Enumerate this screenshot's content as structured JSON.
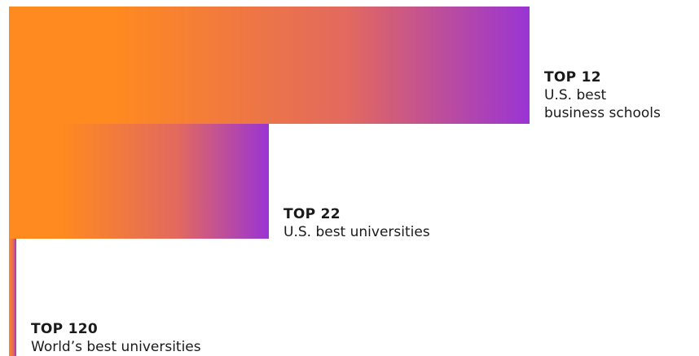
{
  "chart_data": {
    "type": "bar",
    "orientation": "horizontal",
    "categories": [
      "U.S. best business schools",
      "U.S. best universities",
      "World’s best universities"
    ],
    "ranks": [
      12,
      22,
      120
    ],
    "labels": [
      {
        "rank": "TOP 12",
        "desc_lines": [
          "U.S. best",
          "business schools"
        ]
      },
      {
        "rank": "TOP 22",
        "desc_lines": [
          "U.S. best universities"
        ]
      },
      {
        "rank": "TOP 120",
        "desc_lines": [
          "World’s best universities"
        ]
      }
    ]
  },
  "colors": {
    "gradient_start": "#ff8a1f",
    "gradient_mid": "#e2695f",
    "gradient_end": "#9a34d4",
    "text": "#1a1a1a"
  }
}
